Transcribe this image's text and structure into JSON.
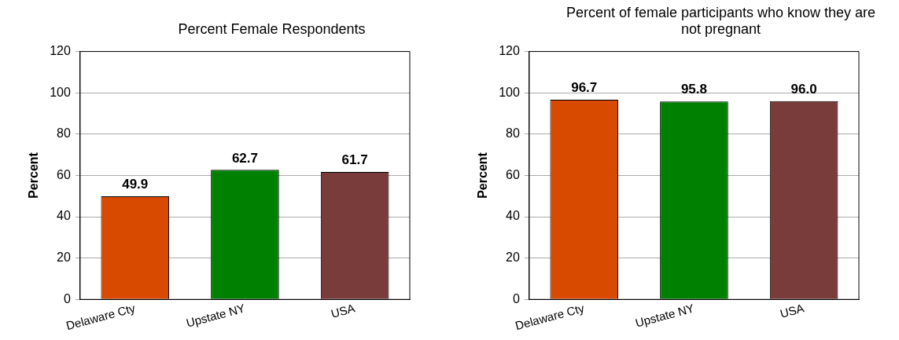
{
  "chart_data": [
    {
      "type": "bar",
      "title": "Percent Female Respondents",
      "ylabel": "Percent",
      "categories": [
        "Delaware Cty",
        "Upstate NY",
        "USA"
      ],
      "values": [
        49.9,
        62.7,
        61.7
      ],
      "value_labels": [
        "49.9",
        "62.7",
        "61.7"
      ],
      "colors": [
        "#d84a00",
        "#008000",
        "#7a3b3b"
      ],
      "ylim": [
        0,
        120
      ],
      "yticks": [
        0,
        20,
        40,
        60,
        80,
        100,
        120
      ],
      "grid": "y",
      "legend": false
    },
    {
      "type": "bar",
      "title": "Percent of female participants who know they are not pregnant",
      "ylabel": "Percent",
      "categories": [
        "Delaware Cty",
        "Upstate NY",
        "USA"
      ],
      "values": [
        96.7,
        95.8,
        96.0
      ],
      "value_labels": [
        "96.7",
        "95.8",
        "96.0"
      ],
      "colors": [
        "#d84a00",
        "#008000",
        "#7a3b3b"
      ],
      "ylim": [
        0,
        120
      ],
      "yticks": [
        0,
        20,
        40,
        60,
        80,
        100,
        120
      ],
      "grid": "y",
      "legend": false
    }
  ]
}
